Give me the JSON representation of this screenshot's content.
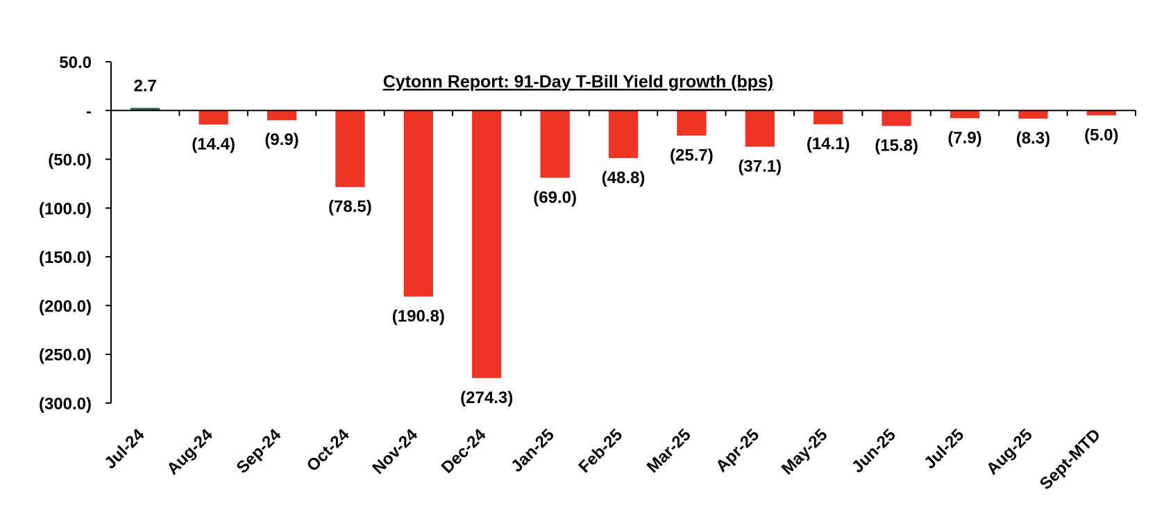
{
  "chart_data": {
    "type": "bar",
    "title": "Cytonn Report:  91-Day T-Bill Yield growth (bps)",
    "xlabel": "",
    "ylabel": "",
    "categories": [
      "Jul-24",
      "Aug-24",
      "Sep-24",
      "Oct-24",
      "Nov-24",
      "Dec-24",
      "Jan-25",
      "Feb-25",
      "Mar-25",
      "Apr-25",
      "May-25",
      "Jun-25",
      "Jul-25",
      "Aug-25",
      "Sept-MTD"
    ],
    "values": [
      2.7,
      -14.4,
      -9.9,
      -78.5,
      -190.8,
      -274.3,
      -69.0,
      -48.8,
      -25.7,
      -37.1,
      -14.1,
      -15.8,
      -7.9,
      -8.3,
      -5.0
    ],
    "data_labels": [
      "2.7",
      "(14.4)",
      "(9.9)",
      "(78.5)",
      "(190.8)",
      "(274.3)",
      "(69.0)",
      "(48.8)",
      "(25.7)",
      "(37.1)",
      "(14.1)",
      "(15.8)",
      "(7.9)",
      "(8.3)",
      "(5.0)"
    ],
    "ylim": [
      -300,
      50
    ],
    "yticks": [
      50,
      0,
      -50,
      -100,
      -150,
      -200,
      -250,
      -300
    ],
    "ytick_labels": [
      "50.0",
      "-",
      "(50.0)",
      "(100.0)",
      "(150.0)",
      "(200.0)",
      "(250.0)",
      "(300.0)"
    ],
    "grid": false,
    "legend": "none",
    "colors": {
      "positive": "#1e6b45",
      "negative": "#ee3524",
      "axis": "#000000"
    }
  }
}
